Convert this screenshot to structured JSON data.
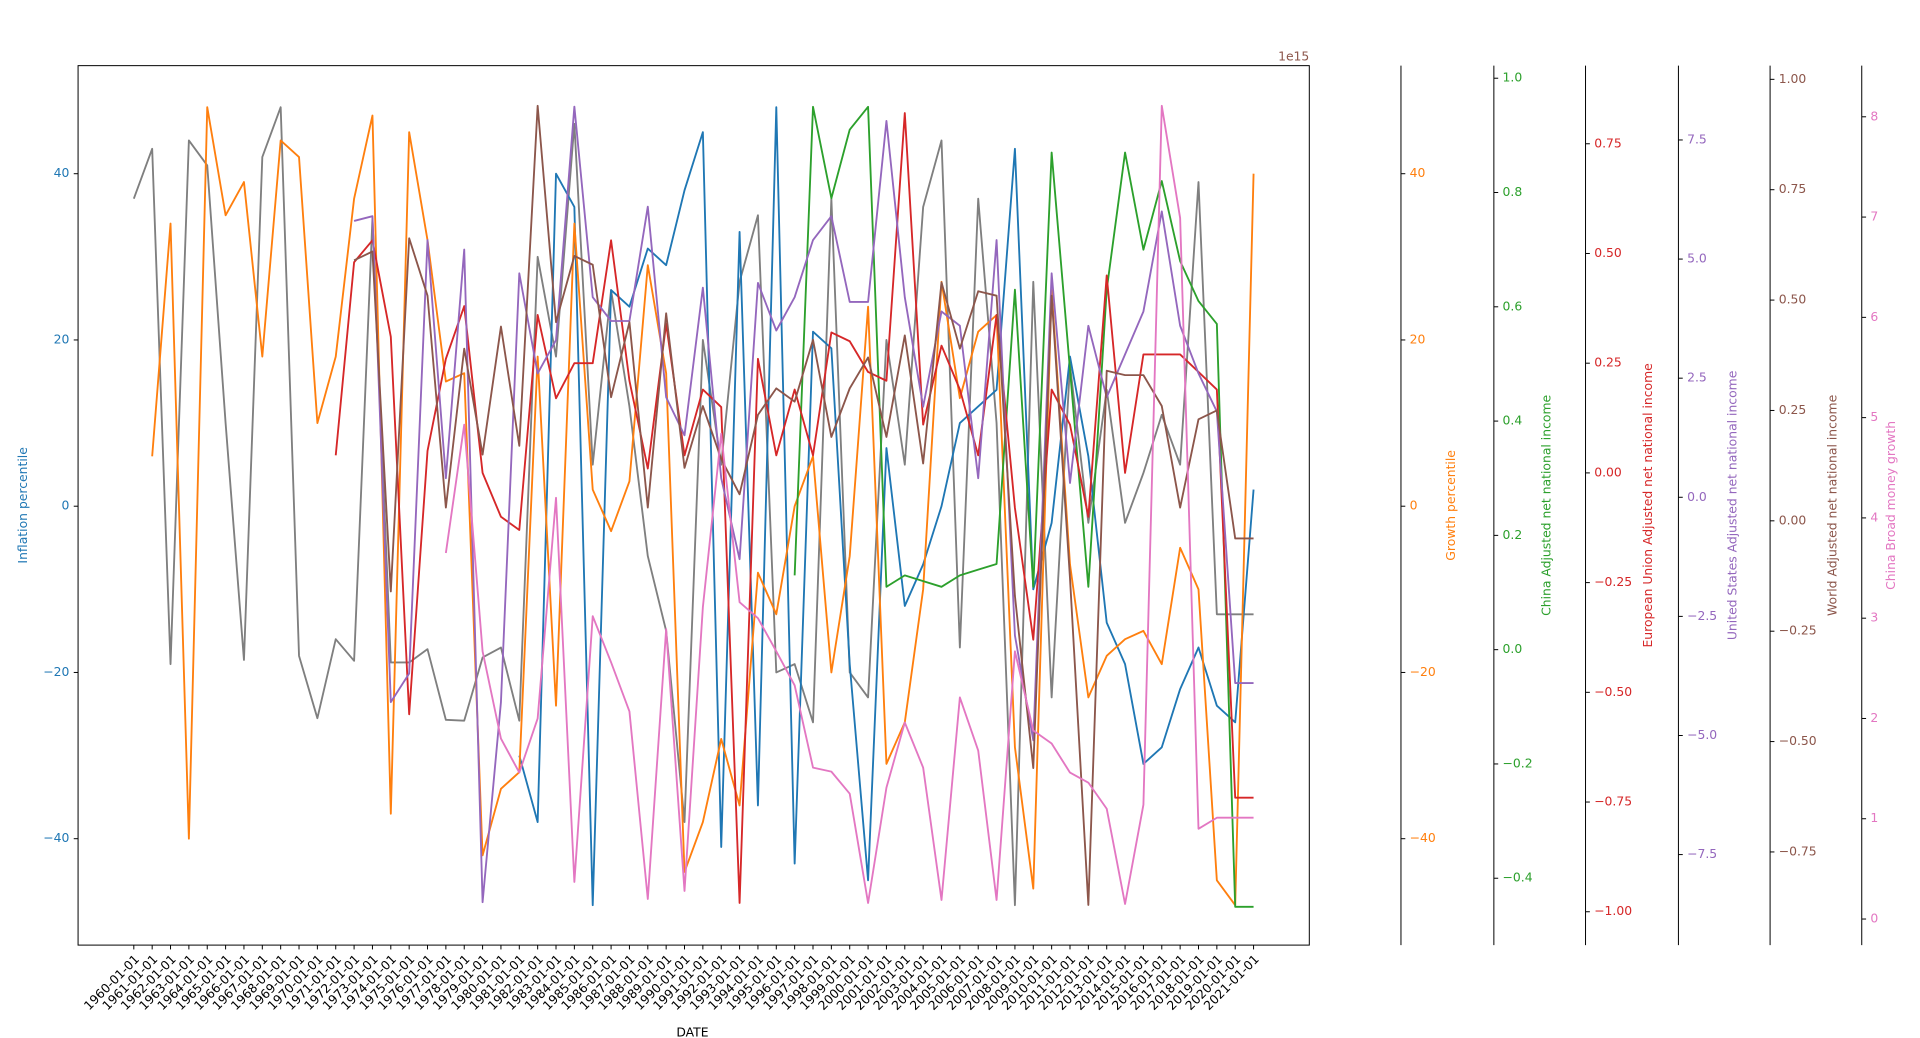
{
  "chart_data": {
    "type": "line",
    "xlabel": "DATE",
    "offset_text": "1e15",
    "categories": [
      "1960-01-01",
      "1961-01-01",
      "1962-01-01",
      "1963-01-01",
      "1964-01-01",
      "1965-01-01",
      "1966-01-01",
      "1967-01-01",
      "1968-01-01",
      "1969-01-01",
      "1970-01-01",
      "1971-01-01",
      "1972-01-01",
      "1973-01-01",
      "1974-01-01",
      "1975-01-01",
      "1976-01-01",
      "1977-01-01",
      "1978-01-01",
      "1979-01-01",
      "1980-01-01",
      "1981-01-01",
      "1982-01-01",
      "1983-01-01",
      "1984-01-01",
      "1985-01-01",
      "1986-01-01",
      "1987-01-01",
      "1988-01-01",
      "1989-01-01",
      "1990-01-01",
      "1991-01-01",
      "1992-01-01",
      "1993-01-01",
      "1994-01-01",
      "1995-01-01",
      "1996-01-01",
      "1997-01-01",
      "1998-01-01",
      "1999-01-01",
      "2000-01-01",
      "2001-01-01",
      "2002-01-01",
      "2003-01-01",
      "2004-01-01",
      "2005-01-01",
      "2006-01-01",
      "2007-01-01",
      "2008-01-01",
      "2009-01-01",
      "2010-01-01",
      "2011-01-01",
      "2012-01-01",
      "2013-01-01",
      "2014-01-01",
      "2015-01-01",
      "2016-01-01",
      "2017-01-01",
      "2018-01-01",
      "2019-01-01",
      "2020-01-01",
      "2021-01-01"
    ],
    "axes": [
      {
        "label": "Inflation percentile",
        "color": "#1f77b4",
        "lim": [
          -52.8,
          53
        ],
        "ticks": [
          {
            "value": -40,
            "label": "−40"
          },
          {
            "value": -20,
            "label": "−20"
          },
          0,
          20,
          40
        ]
      },
      {
        "label": "Growth percentile",
        "color": "#ff7f0e",
        "lim": [
          -52.8,
          53
        ],
        "ticks": [
          {
            "value": -40,
            "label": "−40"
          },
          {
            "value": -20,
            "label": "−20"
          },
          0,
          20,
          40
        ]
      },
      {
        "label": "China Adjusted net national income",
        "color": "#2ca02c",
        "lim": [
          -0.517,
          1.022
        ],
        "ticks": [
          {
            "value": -0.4,
            "label": "−0.4"
          },
          {
            "value": -0.2,
            "label": "−0.2"
          },
          {
            "value": 0,
            "label": "0.0"
          },
          0.2,
          0.4,
          0.6,
          0.8,
          {
            "value": 1,
            "label": "1.0"
          }
        ]
      },
      {
        "label": "European Union Adjusted net national income",
        "color": "#d62728",
        "lim": [
          -1.076,
          0.928
        ],
        "ticks": [
          {
            "value": -1,
            "label": "−1.00"
          },
          {
            "value": -0.75,
            "label": "−0.75"
          },
          {
            "value": -0.5,
            "label": "−0.50"
          },
          {
            "value": -0.25,
            "label": "−0.25"
          },
          {
            "value": 0,
            "label": "0.00"
          },
          0.25,
          {
            "value": 0.5,
            "label": "0.50"
          },
          0.75
        ]
      },
      {
        "label": "United States Adjusted net national income",
        "color": "#9467bd",
        "lim": [
          -9.4,
          9.06
        ],
        "ticks": [
          {
            "value": -7.5,
            "label": "−7.5"
          },
          {
            "value": -5,
            "label": "−5.0"
          },
          {
            "value": -2.5,
            "label": "−2.5"
          },
          {
            "value": 0,
            "label": "0.0"
          },
          2.5,
          {
            "value": 5,
            "label": "5.0"
          },
          7.5
        ]
      },
      {
        "label": "World Adjusted net national income",
        "color": "#8c564b",
        "lim": [
          -0.961,
          1.031
        ],
        "ticks": [
          {
            "value": -0.75,
            "label": "−0.75"
          },
          {
            "value": -0.5,
            "label": "−0.50"
          },
          {
            "value": -0.25,
            "label": "−0.25"
          },
          {
            "value": 0,
            "label": "0.00"
          },
          0.25,
          {
            "value": 0.5,
            "label": "0.50"
          },
          0.75,
          {
            "value": 1,
            "label": "1.00"
          }
        ]
      },
      {
        "label": "China Broad money growth",
        "color": "#e377c2",
        "lim": [
          -0.26,
          8.51
        ],
        "ticks": [
          0,
          1,
          2,
          3,
          4,
          5,
          6,
          7,
          8
        ]
      }
    ],
    "series": [
      {
        "color": "#7f7f7f",
        "axis": 0,
        "values": [
          37,
          43,
          -19,
          44,
          41,
          10,
          -18.5,
          42,
          48,
          -18,
          -25.5,
          -16,
          -18.6,
          34.6,
          -18.8,
          -18.8,
          -17.2,
          -25.7,
          -25.8,
          -18.2,
          -17,
          -25.8,
          30,
          18,
          46,
          5,
          26,
          12,
          -6,
          -15,
          -38,
          20,
          5,
          27,
          35,
          -20,
          -19,
          -26,
          37,
          -20,
          -23,
          20,
          5,
          36,
          44,
          -17,
          37,
          10,
          -48,
          27,
          -23,
          17,
          -2,
          14,
          -2,
          4,
          11,
          5,
          39,
          -13,
          -13,
          -13
        ]
      },
      {
        "color": "#1f77b4",
        "axis": 0,
        "values": [
          null,
          null,
          null,
          null,
          null,
          null,
          null,
          null,
          null,
          null,
          null,
          null,
          null,
          null,
          null,
          null,
          null,
          null,
          null,
          null,
          null,
          -30,
          -38,
          40,
          36,
          -48,
          26,
          24,
          31,
          29,
          38,
          45,
          -41,
          33,
          -36,
          48,
          -43,
          21,
          19,
          -19,
          -45,
          7,
          -12,
          -7,
          0,
          10,
          12,
          14,
          43,
          -10,
          -2,
          18,
          6,
          -14,
          -19,
          -31,
          -29,
          -22,
          -17,
          -24,
          -26,
          2
        ]
      },
      {
        "color": "#ff7f0e",
        "axis": 1,
        "values": [
          null,
          6,
          34,
          -40,
          48,
          35,
          39,
          18,
          44,
          42,
          10,
          18,
          37,
          47,
          -37,
          45,
          32,
          15,
          16,
          -42,
          -34,
          -32,
          18,
          -24,
          34,
          2,
          -3,
          3,
          29,
          16,
          -44,
          -38,
          -28,
          -36,
          -8,
          -13,
          0,
          6,
          -20,
          -6,
          24,
          -31,
          -26,
          -10,
          27,
          13,
          21,
          23,
          -29,
          -46,
          26,
          -7,
          -23,
          -18,
          -16,
          -15,
          -19,
          -5,
          -10,
          -45,
          -48,
          40
        ]
      },
      {
        "color": "#2ca02c",
        "axis": 2,
        "values": [
          null,
          null,
          null,
          null,
          null,
          null,
          null,
          null,
          null,
          null,
          null,
          null,
          null,
          null,
          null,
          null,
          null,
          null,
          null,
          null,
          null,
          null,
          null,
          null,
          null,
          null,
          null,
          null,
          null,
          null,
          null,
          null,
          null,
          null,
          null,
          null,
          0.13,
          0.95,
          0.79,
          0.91,
          0.95,
          0.11,
          0.13,
          0.12,
          0.11,
          0.13,
          0.14,
          0.15,
          0.63,
          0.11,
          0.87,
          0.49,
          0.11,
          0.63,
          0.87,
          0.7,
          0.82,
          0.68,
          0.61,
          0.57,
          -0.45,
          -0.45
        ]
      },
      {
        "color": "#d62728",
        "axis": 3,
        "values": [
          null,
          null,
          null,
          null,
          null,
          null,
          null,
          null,
          null,
          null,
          null,
          0.04,
          0.48,
          0.53,
          0.31,
          -0.55,
          0.05,
          0.26,
          0.38,
          0.0,
          -0.1,
          -0.13,
          0.36,
          0.17,
          0.25,
          0.25,
          0.53,
          0.21,
          0.01,
          0.34,
          0.04,
          0.19,
          0.15,
          -0.98,
          0.26,
          0.04,
          0.19,
          0.04,
          0.32,
          0.3,
          0.23,
          0.21,
          0.82,
          0.11,
          0.29,
          0.19,
          0.04,
          0.36,
          -0.08,
          -0.38,
          0.19,
          0.11,
          -0.1,
          0.45,
          0.0,
          0.27,
          0.27,
          0.27,
          0.23,
          0.19,
          -0.74,
          -0.74
        ]
      },
      {
        "color": "#9467bd",
        "axis": 4,
        "values": [
          null,
          null,
          null,
          null,
          null,
          null,
          null,
          null,
          null,
          null,
          null,
          null,
          5.8,
          5.9,
          -4.3,
          -3.7,
          5.4,
          0.4,
          5.2,
          -8.5,
          -4.3,
          4.7,
          2.6,
          3.3,
          8.2,
          4.2,
          3.7,
          3.7,
          6.1,
          2.1,
          1.3,
          4.4,
          0.4,
          -1.3,
          4.5,
          3.5,
          4.2,
          5.4,
          5.9,
          4.1,
          4.1,
          7.9,
          4.2,
          1.9,
          3.9,
          3.6,
          0.4,
          5.4,
          -2.9,
          -5.1,
          4.7,
          0.3,
          3.6,
          2.1,
          3.0,
          3.9,
          6.0,
          3.6,
          2.6,
          1.8,
          -3.9,
          -3.9
        ]
      },
      {
        "color": "#8c564b",
        "axis": 5,
        "values": [
          null,
          null,
          null,
          null,
          null,
          null,
          null,
          null,
          null,
          null,
          null,
          null,
          0.59,
          0.61,
          -0.16,
          0.64,
          0.51,
          0.03,
          0.39,
          0.15,
          0.44,
          0.17,
          0.94,
          0.45,
          0.6,
          0.58,
          0.28,
          0.45,
          0.03,
          0.47,
          0.12,
          0.26,
          0.14,
          0.06,
          0.24,
          0.3,
          0.27,
          0.41,
          0.19,
          0.3,
          0.37,
          0.19,
          0.42,
          0.13,
          0.54,
          0.39,
          0.52,
          0.51,
          -0.17,
          -0.56,
          0.51,
          -0.13,
          -0.87,
          0.34,
          0.33,
          0.33,
          0.26,
          0.03,
          0.23,
          0.25,
          -0.04,
          -0.04
        ]
      },
      {
        "color": "#e377c2",
        "axis": 6,
        "values": [
          null,
          null,
          null,
          null,
          null,
          null,
          null,
          null,
          null,
          null,
          null,
          null,
          null,
          null,
          null,
          null,
          null,
          3.65,
          4.93,
          2.67,
          1.8,
          1.46,
          2.0,
          4.2,
          0.37,
          3.02,
          2.56,
          2.07,
          0.2,
          2.89,
          0.28,
          3.11,
          4.84,
          3.16,
          3.0,
          2.67,
          2.33,
          1.51,
          1.47,
          1.25,
          0.16,
          1.31,
          1.96,
          1.51,
          0.19,
          2.21,
          1.68,
          0.19,
          2.67,
          1.88,
          1.75,
          1.46,
          1.36,
          1.1,
          0.15,
          1.14,
          8.11,
          6.99,
          0.9,
          1.01,
          1.01,
          1.01
        ]
      }
    ]
  }
}
